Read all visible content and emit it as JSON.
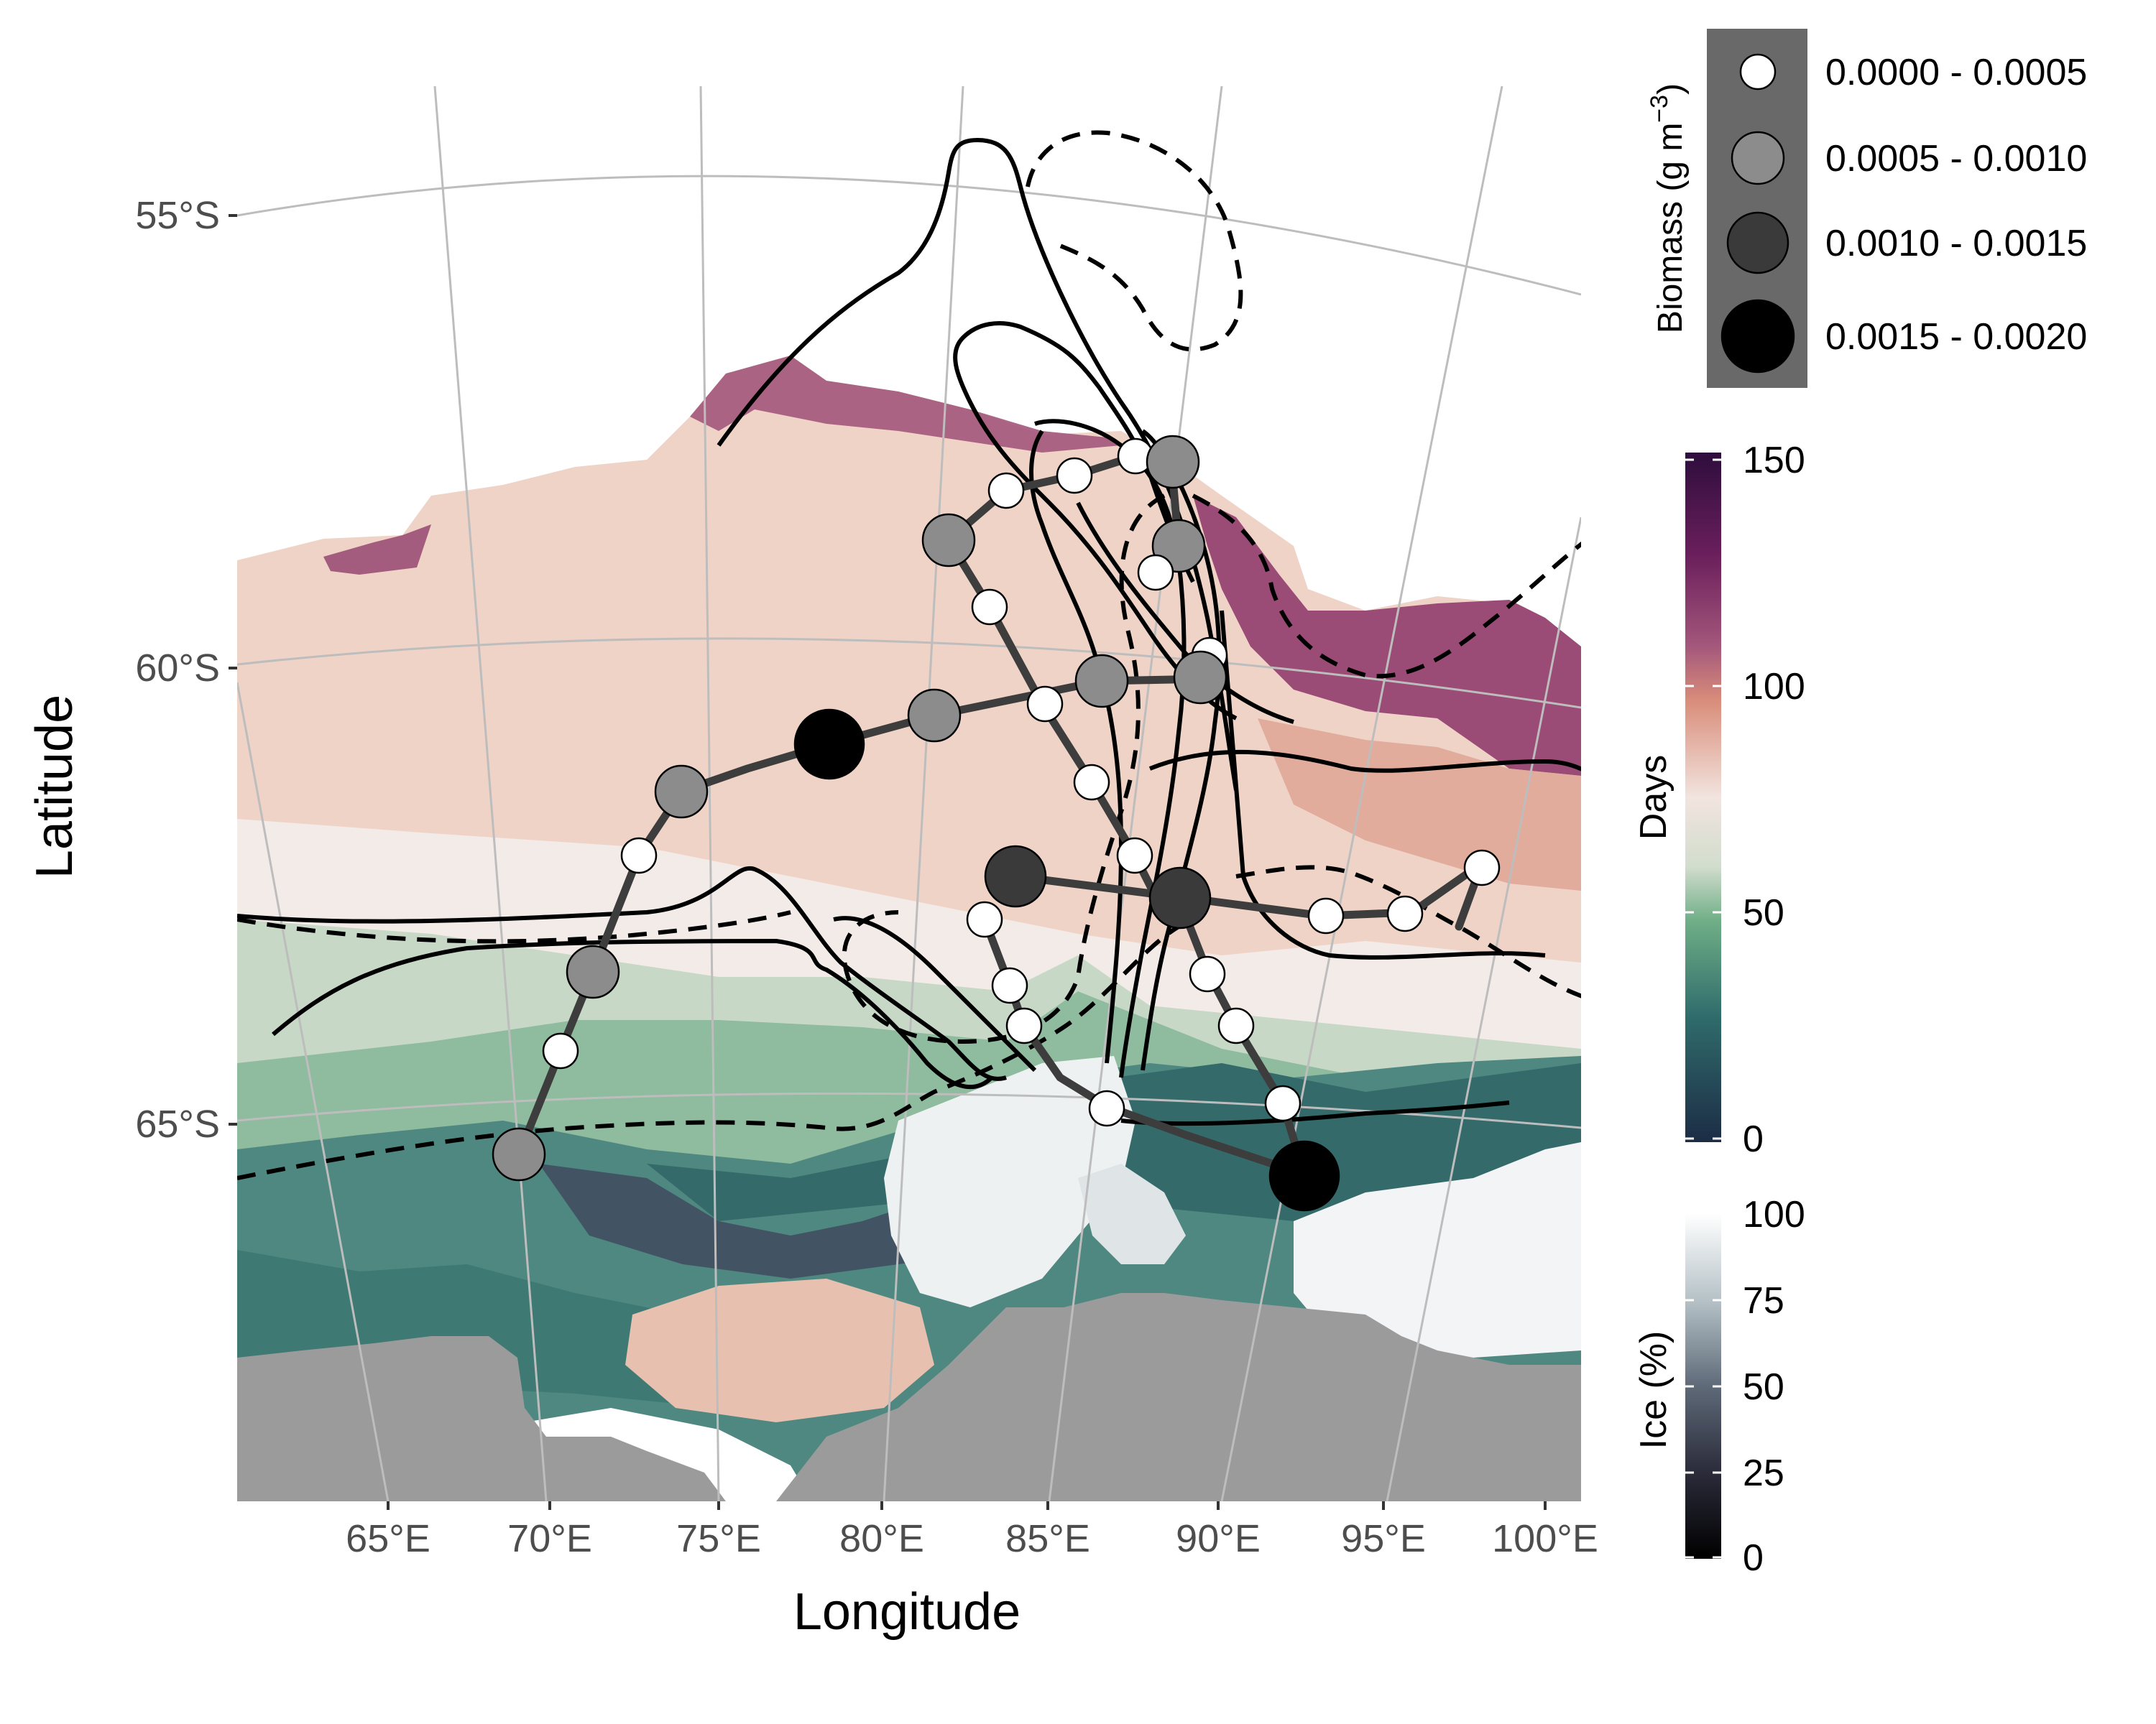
{
  "axes": {
    "x_title": "Longitude",
    "y_title": "Latitude",
    "x_ticks": [
      "65°E",
      "70°E",
      "75°E",
      "80°E",
      "85°E",
      "90°E",
      "95°E",
      "100°E"
    ],
    "y_ticks": [
      "55°S",
      "60°S",
      "65°S"
    ]
  },
  "legends": {
    "biomass": {
      "title": "Biomass (g m",
      "title_exponent": "−3",
      "title_close": ")",
      "items": [
        {
          "label": "0.0000 - 0.0005",
          "fill": "#ffffff"
        },
        {
          "label": "0.0005 - 0.0010",
          "fill": "#8c8c8c"
        },
        {
          "label": "0.0010 - 0.0015",
          "fill": "#3a3a3a"
        },
        {
          "label": "0.0015 - 0.0020",
          "fill": "#000000"
        }
      ]
    },
    "days": {
      "title": "Days",
      "ticks": [
        "150",
        "100",
        "50",
        "0"
      ],
      "colors": [
        "#2e0d3d",
        "#6b1f5c",
        "#a3577b",
        "#d98d7a",
        "#f2e4df",
        "#d2ddce",
        "#6fae86",
        "#2f6b6b",
        "#1c2c45"
      ]
    },
    "ice": {
      "title": "Ice (%)",
      "ticks": [
        "100",
        "75",
        "50",
        "25",
        "0"
      ],
      "colors": [
        "#ffffff",
        "#b6c2c7",
        "#5e6a78",
        "#2b2b3a",
        "#000000"
      ]
    }
  },
  "colors": {
    "land": "#9b9b9b",
    "graticule": "#bdbdbd",
    "track": "#3d3d3d",
    "front_line": "#000000"
  }
}
